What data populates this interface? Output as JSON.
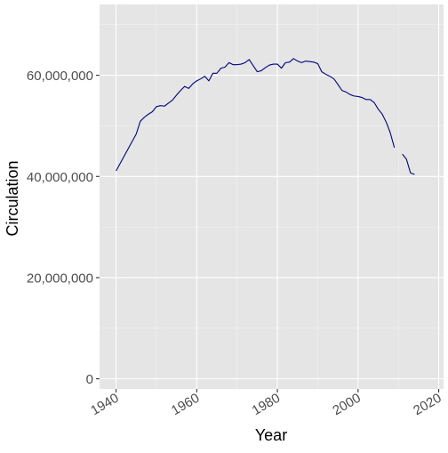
{
  "chart_data": {
    "type": "line",
    "xlabel": "Year",
    "ylabel": "Circulation",
    "xlim": [
      1935.9,
      2021.2
    ],
    "ylim": [
      -2000000,
      74000000
    ],
    "x_ticks": [
      1940,
      1960,
      1980,
      2000,
      2020
    ],
    "y_ticks": [
      0,
      20000000,
      40000000,
      60000000
    ],
    "y_tick_labels": [
      "0",
      "20,000,000",
      "40,000,000",
      "60,000,000"
    ],
    "x_tick_labels": [
      "1940",
      "1960",
      "1980",
      "2000",
      "2020"
    ],
    "grid": true,
    "panel_background": "#E5E5E5",
    "grid_major_color": "#FFFFFF",
    "grid_minor_color": "#F2F2F2",
    "line_color": "#000080",
    "series": [
      {
        "segments": [
          {
            "x": [
              1940,
              1945,
              1946,
              1947,
              1948,
              1949,
              1950,
              1951,
              1952,
              1953,
              1954,
              1955,
              1956,
              1957,
              1958,
              1959,
              1960,
              1961,
              1962,
              1963,
              1964,
              1965,
              1966,
              1967,
              1968,
              1969,
              1970,
              1971,
              1972,
              1973,
              1974,
              1975,
              1976,
              1977,
              1978,
              1979,
              1980,
              1981,
              1982,
              1983,
              1984,
              1985,
              1986,
              1987,
              1988,
              1989,
              1990,
              1991,
              1992,
              1993,
              1994,
              1995,
              1996,
              1997,
              1998,
              1999,
              2000,
              2001,
              2002,
              2003,
              2004,
              2005,
              2006,
              2007,
              2008,
              2009
            ],
            "y": [
              41100000,
              48400000,
              50900000,
              51700000,
              52300000,
              52800000,
              53800000,
              54000000,
              53900000,
              54500000,
              55100000,
              56100000,
              57000000,
              57800000,
              57400000,
              58300000,
              58900000,
              59300000,
              59800000,
              58900000,
              60400000,
              60400000,
              61400000,
              61600000,
              62500000,
              62100000,
              62100000,
              62200000,
              62500000,
              63100000,
              61900000,
              60700000,
              60900000,
              61500000,
              62000000,
              62200000,
              62200000,
              61400000,
              62500000,
              62600000,
              63300000,
              62800000,
              62500000,
              62800000,
              62700000,
              62600000,
              62300000,
              60700000,
              60200000,
              59800000,
              59300000,
              58200000,
              57000000,
              56700000,
              56200000,
              55900000,
              55800000,
              55600000,
              55200000,
              55200000,
              54600000,
              53300000,
              52300000,
              50700000,
              48600000,
              45700000
            ]
          },
          {
            "x": [
              2011,
              2012,
              2013,
              2014
            ],
            "y": [
              44400000,
              43400000,
              40700000,
              40400000
            ]
          }
        ]
      }
    ]
  }
}
